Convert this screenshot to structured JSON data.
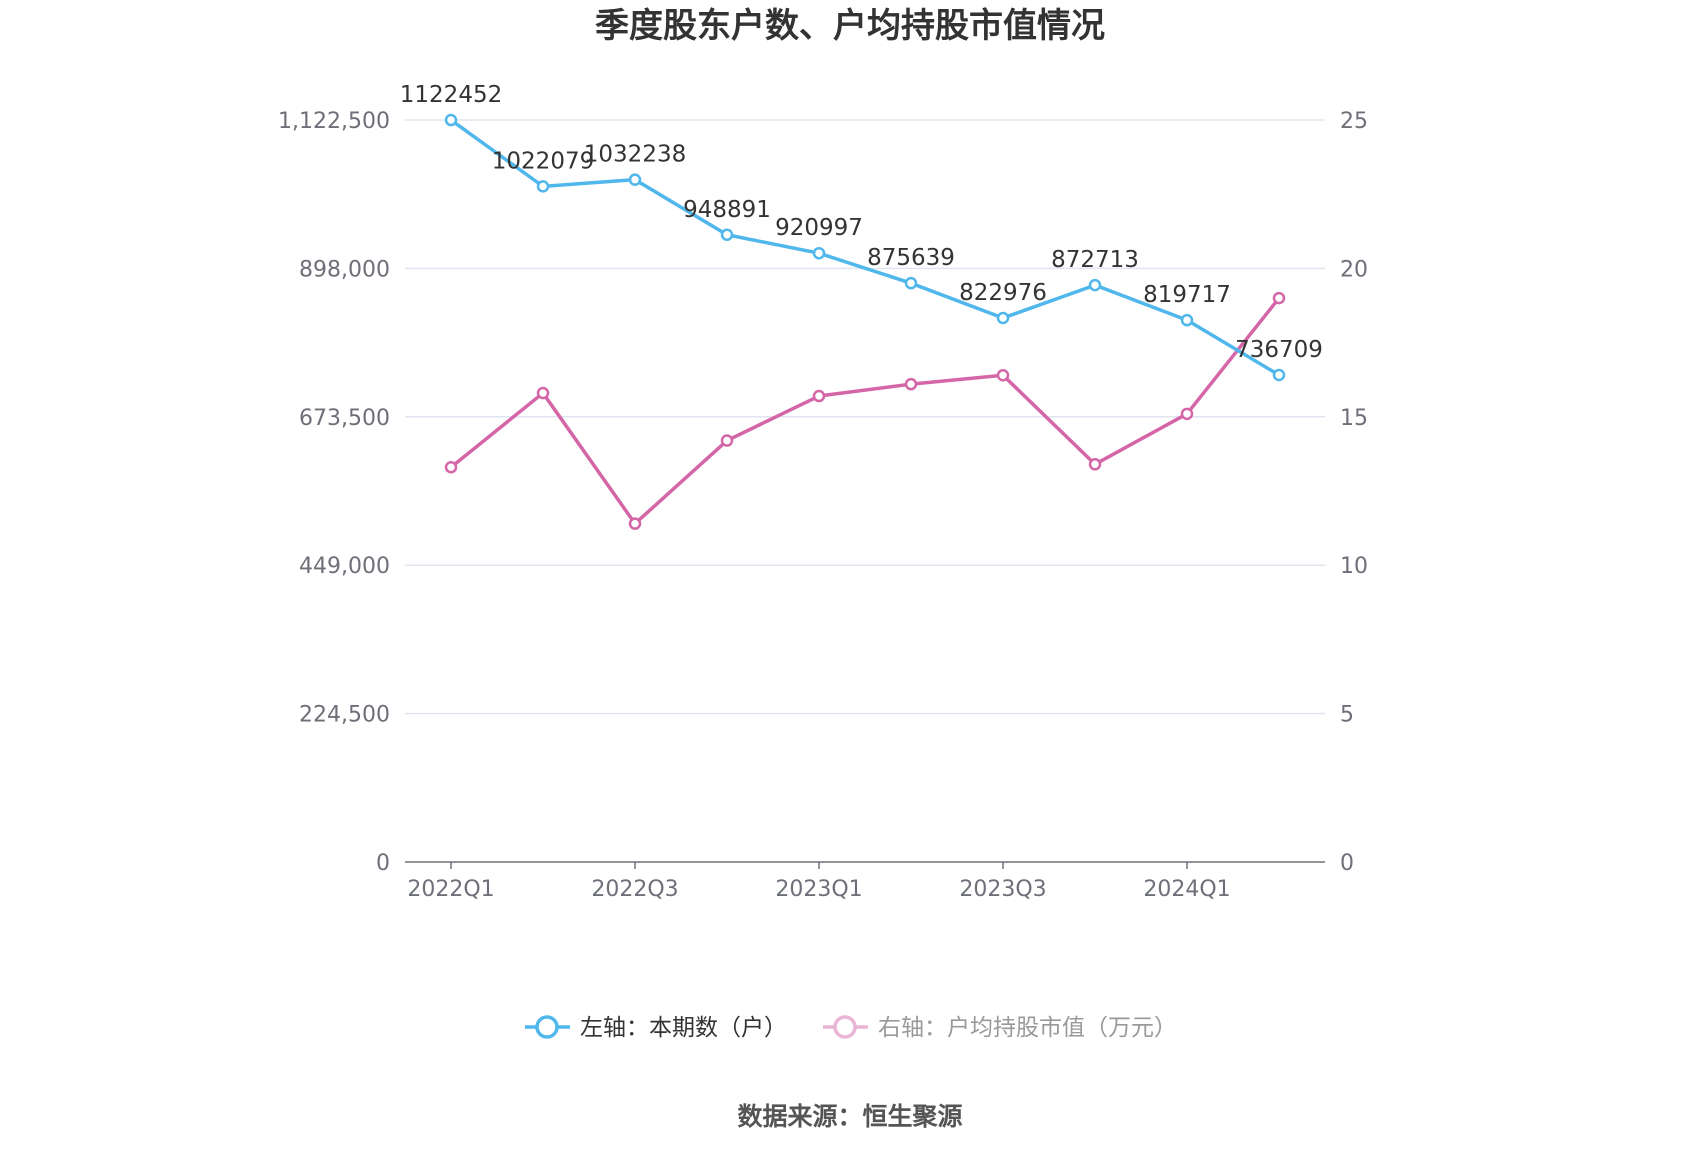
{
  "chart_data": {
    "type": "line",
    "title": "季度股东户数、户均持股市值情况",
    "categories": [
      "2022Q1",
      "2022Q2",
      "2022Q3",
      "2022Q4",
      "2023Q1",
      "2023Q2",
      "2023Q3",
      "2023Q4",
      "2024Q1",
      "2024Q2"
    ],
    "x_tick_labels": [
      "2022Q1",
      "2022Q3",
      "2023Q1",
      "2023Q3",
      "2024Q1"
    ],
    "left_axis": {
      "min": 0,
      "max": 1122500,
      "ticks": [
        "0",
        "224,500",
        "449,000",
        "673,500",
        "898,000",
        "1,122,500"
      ],
      "tick_values": [
        0,
        224500,
        449000,
        673500,
        898000,
        1122500
      ]
    },
    "right_axis": {
      "min": 0,
      "max": 25,
      "ticks": [
        "0",
        "5",
        "10",
        "15",
        "20",
        "25"
      ],
      "tick_values": [
        0,
        5,
        10,
        15,
        20,
        25
      ]
    },
    "series": [
      {
        "name": "左轴：本期数（户）",
        "axis": "left",
        "color": "#4fb7eb",
        "values": [
          1122452,
          1022079,
          1032238,
          948891,
          920997,
          875639,
          822976,
          872713,
          819717,
          736709
        ],
        "labels": [
          "1122452",
          "1022079",
          "1032238",
          "948891",
          "920997",
          "875639",
          "822976",
          "872713",
          "819717",
          "736709"
        ]
      },
      {
        "name": "右轴：户均持股市值（万元）",
        "axis": "right",
        "color": "#d466a8",
        "values": [
          13.3,
          15.8,
          11.4,
          14.2,
          15.7,
          16.1,
          16.4,
          13.4,
          15.1,
          19.0
        ]
      }
    ],
    "grid": true,
    "legend_position": "bottom"
  },
  "source": "数据来源：恒生聚源"
}
